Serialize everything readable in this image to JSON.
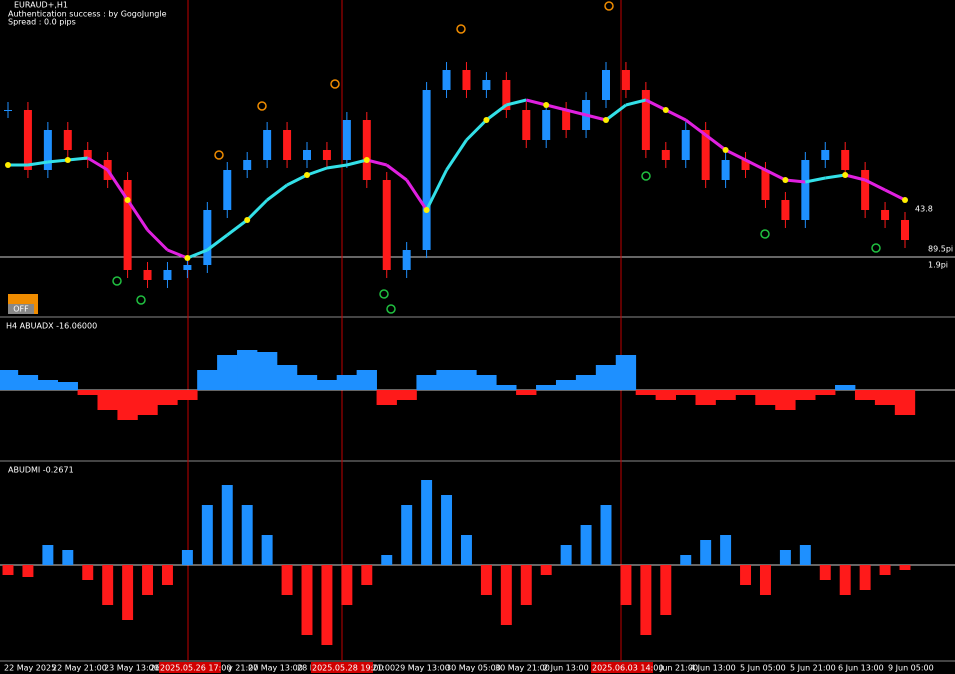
{
  "header": {
    "symbol": "EURAUD+,H1",
    "auth": "Authentication success : by GogoJungle",
    "spread": "Spread : 0.0 pips",
    "button": "OFF"
  },
  "price_labels": {
    "upper": "43.8",
    "blue": "89.5pi",
    "red": "1.9pi"
  },
  "price": {
    "ylim": [
      0,
      320
    ],
    "close": [
      206,
      146,
      186,
      166,
      156,
      136,
      46,
      36,
      46,
      51,
      106,
      146,
      156,
      186,
      156,
      166,
      156,
      196,
      136,
      46,
      66,
      226,
      246,
      226,
      236,
      206,
      176,
      206,
      186,
      216,
      246,
      226,
      166,
      156,
      186,
      136,
      156,
      146,
      116,
      96,
      156,
      166,
      146,
      106,
      96,
      76
    ],
    "ma": [
      151,
      151,
      154,
      156,
      158,
      146,
      116,
      86,
      66,
      58,
      66,
      81,
      96,
      116,
      131,
      141,
      148,
      151,
      156,
      151,
      136,
      106,
      146,
      176,
      196,
      211,
      216,
      211,
      206,
      201,
      196,
      211,
      216,
      206,
      196,
      181,
      166,
      156,
      146,
      136,
      134,
      138,
      141,
      136,
      126,
      116
    ],
    "up_color": "#1e90ff",
    "down_color": "#ff1a1a",
    "ma_up_color": "#33e0e8",
    "ma_down_color": "#e020e0"
  },
  "adx": {
    "title": "H4 ABUADX -16.06000",
    "ylim": [
      -70,
      72
    ],
    "values": [
      20,
      15,
      10,
      8,
      -5,
      -20,
      -30,
      -25,
      -15,
      -10,
      20,
      35,
      40,
      38,
      25,
      15,
      10,
      15,
      20,
      -15,
      -10,
      15,
      20,
      20,
      15,
      5,
      -5,
      5,
      10,
      15,
      25,
      35,
      -5,
      -10,
      -5,
      -15,
      -10,
      -5,
      -15,
      -20,
      -10,
      -5,
      5,
      -10,
      -15,
      -25
    ],
    "pos_color": "#1e90ff",
    "neg_color": "#ff1a1a"
  },
  "dmi": {
    "title": "ABUDMI -0.2671",
    "ylim": [
      -95,
      103
    ],
    "values": [
      -10,
      -12,
      20,
      15,
      -15,
      -40,
      -55,
      -30,
      -20,
      15,
      60,
      80,
      60,
      30,
      -30,
      -70,
      -80,
      -40,
      -20,
      10,
      60,
      85,
      70,
      30,
      -30,
      -60,
      -40,
      -10,
      20,
      40,
      60,
      -40,
      -70,
      -50,
      10,
      25,
      30,
      -20,
      -30,
      15,
      20,
      -15,
      -30,
      -25,
      -10,
      -5
    ],
    "pos_color": "#1e90ff",
    "neg_color": "#ff1a1a"
  },
  "time_labels": [
    "22 May 2025",
    "22 May 21:00",
    "23 May 13:00",
    "26",
    "2025.05.26 17:00",
    "y 21:00",
    "27 May 13:00",
    "28 M",
    "2025.05.28 19:00",
    "21:00",
    "29 May 13:00",
    "30 May 05:00",
    "30 May 21:00",
    "2 Jun 13:00",
    "2025.06.03 14:00",
    "Jun 21:00",
    "4 Jun 13:00",
    "5 Jun 05:00",
    "5 Jun 21:00",
    "6 Jun 13:00",
    "9 Jun 05:00"
  ]
}
